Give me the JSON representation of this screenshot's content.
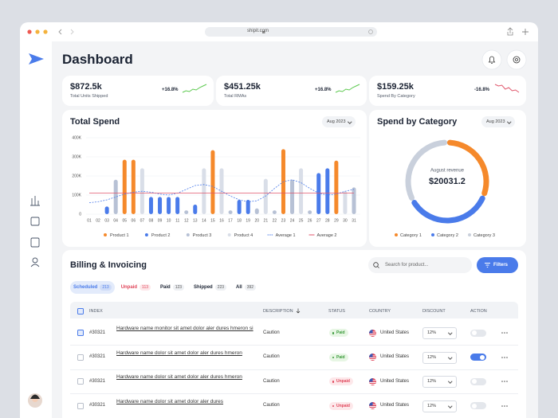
{
  "browser": {
    "url": "shipit.com"
  },
  "header": {
    "title": "Dashboard"
  },
  "kpis": [
    {
      "value": "$872.5k",
      "label": "Total Units Shipped",
      "change": "+16.8%",
      "color": "#5cc94f",
      "trend": [
        3,
        4,
        3.5,
        5,
        4.5,
        6,
        7,
        8
      ]
    },
    {
      "value": "$451.25k",
      "label": "Total RMAs",
      "change": "+16.8%",
      "color": "#5cc94f",
      "trend": [
        3,
        4,
        3.5,
        5,
        4.5,
        6,
        7,
        8
      ]
    },
    {
      "value": "$159.25k",
      "label": "Spend By Category",
      "change": "-16.8%",
      "color": "#e0566b",
      "trend": [
        8,
        7,
        7.5,
        5,
        6,
        4,
        4.5,
        3
      ]
    }
  ],
  "chart_data": [
    {
      "type": "bar",
      "title": "Total Spend",
      "period": "Aug 2023",
      "categories": [
        "01",
        "02",
        "03",
        "04",
        "05",
        "06",
        "07",
        "08",
        "09",
        "10",
        "11",
        "12",
        "13",
        "14",
        "15",
        "16",
        "17",
        "18",
        "19",
        "20",
        "21",
        "22",
        "23",
        "24",
        "25",
        "26",
        "27",
        "28",
        "29",
        "30",
        "31"
      ],
      "series": [
        {
          "name": "Product 1",
          "type": "bar",
          "color": "#f5892b",
          "values": [
            null,
            null,
            null,
            null,
            285000,
            285000,
            null,
            null,
            null,
            null,
            null,
            null,
            null,
            null,
            335000,
            null,
            null,
            null,
            null,
            null,
            null,
            null,
            340000,
            null,
            null,
            null,
            null,
            null,
            280000,
            null,
            null
          ]
        },
        {
          "name": "Product 2",
          "type": "bar",
          "color": "#4a7bea",
          "values": [
            null,
            null,
            40000,
            null,
            null,
            null,
            null,
            90000,
            90000,
            90000,
            90000,
            null,
            50000,
            null,
            null,
            null,
            null,
            75000,
            75000,
            null,
            null,
            null,
            null,
            null,
            null,
            null,
            215000,
            240000,
            null,
            null,
            null
          ]
        },
        {
          "name": "Product 3",
          "type": "bar",
          "color": "#b7c1d5",
          "values": [
            null,
            null,
            null,
            180000,
            null,
            null,
            null,
            null,
            null,
            null,
            null,
            20000,
            null,
            null,
            null,
            null,
            20000,
            null,
            null,
            30000,
            null,
            20000,
            null,
            180000,
            null,
            20000,
            null,
            null,
            null,
            null,
            140000
          ]
        },
        {
          "name": "Product 4",
          "type": "bar",
          "color": "#d9dee8",
          "values": [
            null,
            null,
            null,
            null,
            null,
            null,
            240000,
            null,
            null,
            null,
            null,
            null,
            null,
            240000,
            null,
            240000,
            null,
            null,
            null,
            null,
            185000,
            null,
            null,
            null,
            240000,
            null,
            null,
            null,
            null,
            120000,
            null
          ]
        },
        {
          "name": "Average 1",
          "type": "line",
          "dash": true,
          "color": "#4a7bea",
          "values": [
            60000,
            65000,
            75000,
            90000,
            105000,
            115000,
            120000,
            115000,
            105000,
            100000,
            110000,
            130000,
            150000,
            155000,
            145000,
            120000,
            95000,
            75000,
            65000,
            70000,
            95000,
            135000,
            170000,
            180000,
            165000,
            135000,
            110000,
            100000,
            105000,
            120000,
            130000
          ]
        },
        {
          "name": "Average 2",
          "type": "line",
          "dash": false,
          "color": "#e0566b",
          "values": [
            110000,
            110000,
            110000,
            110000,
            110000,
            110000,
            110000,
            110000,
            110000,
            110000,
            110000,
            110000,
            110000,
            110000,
            110000,
            110000,
            110000,
            110000,
            110000,
            110000,
            110000,
            110000,
            110000,
            110000,
            110000,
            110000,
            110000,
            110000,
            110000,
            110000,
            110000
          ]
        }
      ],
      "ylim": [
        0,
        400000
      ],
      "yticks": [
        0,
        {
          "value": 100000,
          "label": "100K"
        },
        {
          "value": 200000,
          "label": "200K"
        },
        {
          "value": 300000,
          "label": "300K"
        },
        {
          "value": 400000,
          "label": "400K"
        }
      ],
      "grid": true,
      "legend": "bottom"
    },
    {
      "type": "pie",
      "title": "Spend by Category",
      "period": "Aug 2023",
      "center_label": "August revenue",
      "center_value": "$20031.2",
      "categories": [
        "Category 1",
        "Category 2",
        "Category 3"
      ],
      "values": [
        31,
        36,
        33
      ],
      "colors": [
        "#f5892b",
        "#4a7bea",
        "#c9d0dc"
      ],
      "legend": "bottom"
    }
  ],
  "billing": {
    "title": "Billing & Invoicing",
    "search_placeholder": "Search for product...",
    "filter_button": "Filters",
    "tabs": [
      {
        "label": "Scheduled",
        "count": "213",
        "active": true,
        "color": "#4a7bea"
      },
      {
        "label": "Unpaid",
        "count": "113",
        "active": false,
        "color": "#e0455a"
      },
      {
        "label": "Paid",
        "count": "123",
        "active": false,
        "color": "#1b2333"
      },
      {
        "label": "Shipped",
        "count": "223",
        "active": false,
        "color": "#1b2333"
      },
      {
        "label": "All",
        "count": "392",
        "active": false,
        "color": "#1b2333"
      }
    ],
    "columns": [
      "INDEX",
      "DESCRIPTION",
      "STATUS",
      "COUNTRY",
      "DISCOUNT",
      "ACTION"
    ],
    "rows": [
      {
        "index": "#30321",
        "description": "Hardware name monitor sit amet dolor aler dures hmeron si",
        "note": "Caution",
        "status": "Paid",
        "status_color": "#3a9a3a",
        "status_bg": "#e7f6e4",
        "country": "United States",
        "discount": "12%",
        "checked": true,
        "enabled": false
      },
      {
        "index": "#30321",
        "description": "Hardware name dolor sit amet dolor aler dures hmeron",
        "note": "Caution",
        "status": "Paid",
        "status_color": "#3a9a3a",
        "status_bg": "#e7f6e4",
        "country": "United States",
        "discount": "12%",
        "checked": false,
        "enabled": true
      },
      {
        "index": "#30321",
        "description": "Hardware name dolor sit amet dolor aler dures hmeron",
        "note": "Caution",
        "status": "Unpaid",
        "status_color": "#e0455a",
        "status_bg": "#fde8ea",
        "country": "United States",
        "discount": "12%",
        "checked": false,
        "enabled": false
      },
      {
        "index": "#30321",
        "description": "Hardware name dolor sit amet dolor aler dures",
        "note": "Caution",
        "status": "Unpaid",
        "status_color": "#e0455a",
        "status_bg": "#fde8ea",
        "country": "United States",
        "discount": "12%",
        "checked": false,
        "enabled": false
      }
    ]
  }
}
